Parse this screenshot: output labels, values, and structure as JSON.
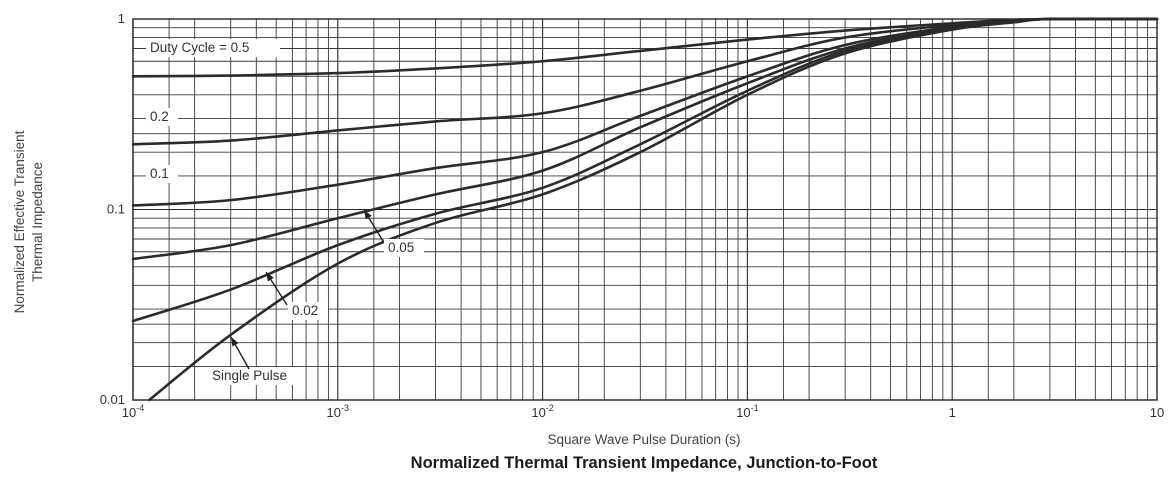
{
  "chart_data": {
    "type": "line",
    "title": "Normalized Thermal Transient Impedance, Junction-to-Foot",
    "xlabel": "Square Wave Pulse Duration (s)",
    "ylabel_lines": [
      "Normalized Effective Transient",
      "Thermal Impedance"
    ],
    "xscale": "log",
    "yscale": "log",
    "xlim": [
      0.0001,
      10
    ],
    "ylim": [
      0.01,
      1
    ],
    "grid": true,
    "x_ticks": [
      {
        "base": "10",
        "exp": "-4"
      },
      {
        "base": "10",
        "exp": "-3"
      },
      {
        "base": "10",
        "exp": "-2"
      },
      {
        "base": "10",
        "exp": "-1"
      },
      {
        "base": "1",
        "exp": ""
      },
      {
        "base": "10",
        "exp": ""
      }
    ],
    "y_ticks": [
      "0.01",
      "0.1",
      "1"
    ],
    "series": [
      {
        "name": "Duty Cycle = 0.5",
        "x": [
          0.0001,
          0.0003,
          0.001,
          0.003,
          0.01,
          0.03,
          0.1,
          0.3,
          1,
          2,
          3,
          10
        ],
        "y": [
          0.5,
          0.505,
          0.52,
          0.55,
          0.6,
          0.68,
          0.78,
          0.87,
          0.95,
          0.99,
          1.0,
          1.0
        ]
      },
      {
        "name": "0.2",
        "x": [
          0.0001,
          0.0003,
          0.001,
          0.003,
          0.01,
          0.03,
          0.1,
          0.3,
          1,
          2,
          3,
          10
        ],
        "y": [
          0.22,
          0.23,
          0.26,
          0.29,
          0.32,
          0.42,
          0.6,
          0.8,
          0.93,
          0.98,
          1.0,
          1.0
        ]
      },
      {
        "name": "0.1",
        "x": [
          0.0001,
          0.0003,
          0.001,
          0.003,
          0.01,
          0.03,
          0.1,
          0.3,
          1,
          2,
          3,
          10
        ],
        "y": [
          0.105,
          0.112,
          0.135,
          0.165,
          0.2,
          0.31,
          0.5,
          0.73,
          0.91,
          0.97,
          1.0,
          1.0
        ]
      },
      {
        "name": "0.05",
        "x": [
          0.0001,
          0.0003,
          0.001,
          0.003,
          0.01,
          0.03,
          0.1,
          0.3,
          1,
          2,
          3,
          10
        ],
        "y": [
          0.055,
          0.065,
          0.09,
          0.12,
          0.16,
          0.27,
          0.46,
          0.7,
          0.9,
          0.97,
          1.0,
          1.0
        ]
      },
      {
        "name": "0.02",
        "x": [
          0.0001,
          0.0003,
          0.001,
          0.003,
          0.01,
          0.03,
          0.1,
          0.3,
          1,
          2,
          3,
          10
        ],
        "y": [
          0.026,
          0.038,
          0.065,
          0.095,
          0.13,
          0.22,
          0.42,
          0.68,
          0.89,
          0.97,
          1.0,
          1.0
        ]
      },
      {
        "name": "Single Pulse",
        "x": [
          0.00012,
          0.0003,
          0.001,
          0.003,
          0.01,
          0.03,
          0.1,
          0.3,
          1,
          2,
          3,
          10
        ],
        "y": [
          0.01,
          0.022,
          0.052,
          0.085,
          0.12,
          0.2,
          0.4,
          0.66,
          0.88,
          0.96,
          1.0,
          1.0
        ]
      }
    ]
  }
}
